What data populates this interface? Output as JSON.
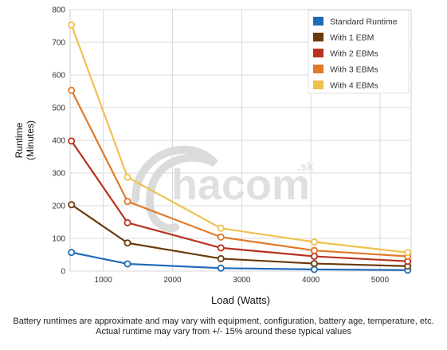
{
  "chart_data": {
    "type": "line",
    "xlabel": "Load (Watts)",
    "ylabel_lines": [
      "Runtime",
      "(Minutes)"
    ],
    "xlim": [
      520,
      5450
    ],
    "ylim": [
      0,
      800
    ],
    "x_ticks": [
      1000,
      2000,
      3000,
      4000,
      5000
    ],
    "y_ticks": [
      0,
      100,
      200,
      300,
      400,
      500,
      600,
      700,
      800
    ],
    "x": [
      540,
      1350,
      2700,
      4050,
      5400
    ],
    "grid": true,
    "legend_position": "top-right",
    "series": [
      {
        "name": "Standard Runtime",
        "color": "#1f6bb8",
        "values": [
          57,
          22,
          9,
          5,
          3
        ]
      },
      {
        "name": "With 1 EBM",
        "color": "#6b3a0c",
        "values": [
          203,
          86,
          38,
          23,
          15
        ]
      },
      {
        "name": "With 2 EBMs",
        "color": "#b8321f",
        "values": [
          398,
          148,
          71,
          45,
          30
        ]
      },
      {
        "name": "With 3 EBMs",
        "color": "#e07a2a",
        "values": [
          553,
          213,
          104,
          63,
          45
        ]
      },
      {
        "name": "With 4 EBMs",
        "color": "#f1c14e",
        "values": [
          753,
          287,
          131,
          89,
          57
        ]
      }
    ]
  },
  "watermark": {
    "text": "hacom",
    "suffix": ".sk"
  },
  "footnote": {
    "line1": "Battery runtimes are approximate and may vary with equipment, configuration, battery age, temperature, etc.",
    "line2": "Actual runtime may vary from +/- 15% around these typical values"
  }
}
